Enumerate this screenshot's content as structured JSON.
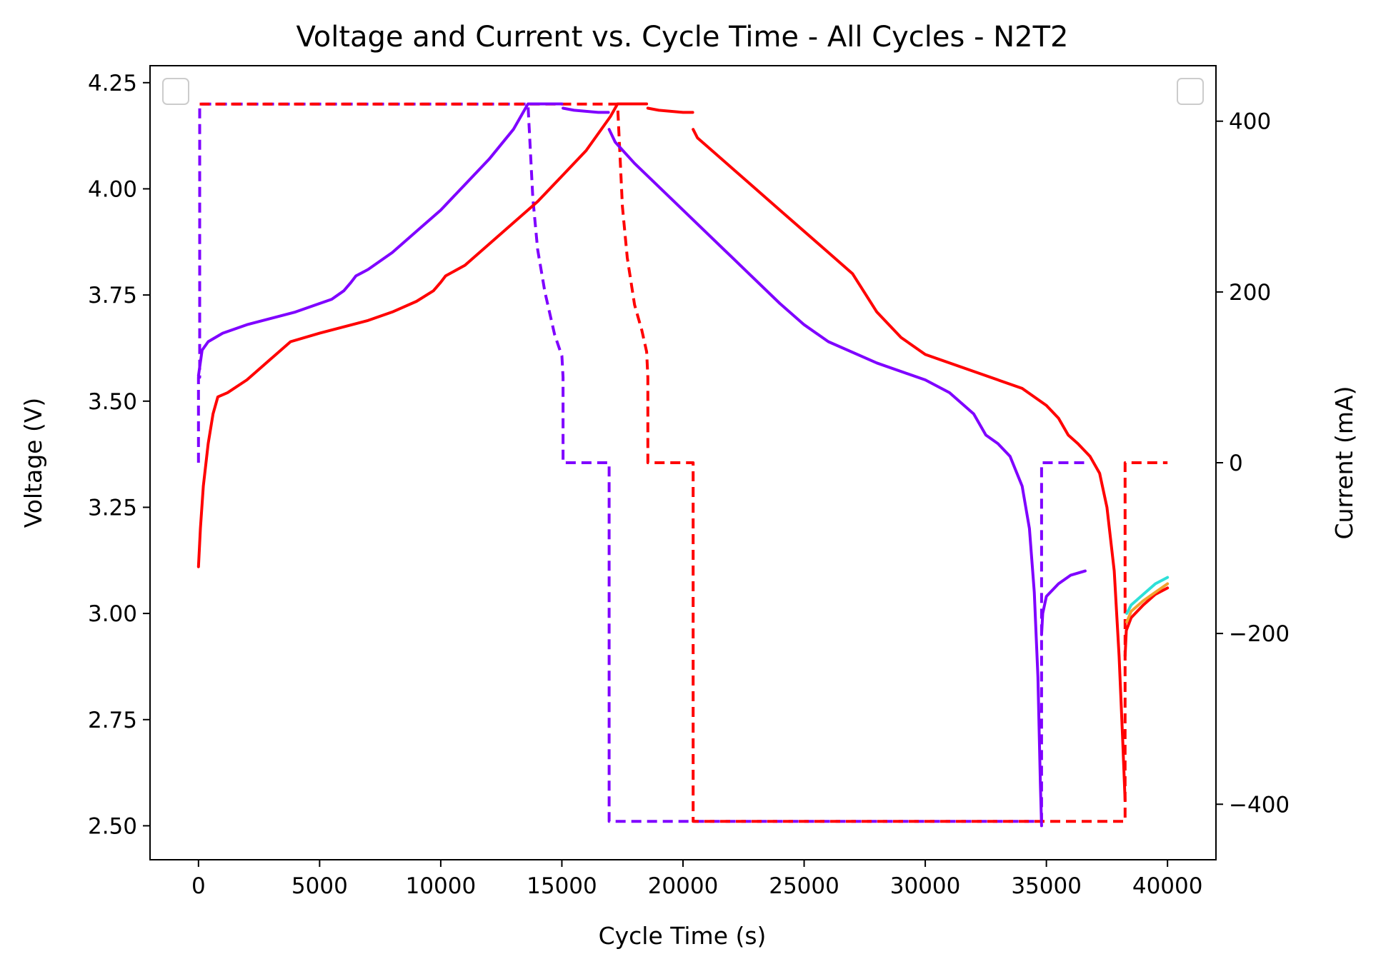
{
  "colors": {
    "purple": "#7f00ff",
    "red": "#ff0000",
    "cyan": "#2ee0d8",
    "orange": "#f2a22e",
    "axis": "#000000",
    "legend_border": "#cccccc"
  },
  "chart_data": {
    "type": "line",
    "title": "Voltage and Current vs. Cycle Time - All Cycles - N2T2",
    "xlabel": "Cycle Time (s)",
    "ylabel_left": "Voltage (V)",
    "ylabel_right": "Current (mA)",
    "xlim": [
      -2000,
      42000
    ],
    "ylim_left": [
      2.42,
      4.29
    ],
    "ylim_right": [
      -465,
      465
    ],
    "xticks": [
      0,
      5000,
      10000,
      15000,
      20000,
      25000,
      30000,
      35000,
      40000
    ],
    "xtick_labels": [
      "0",
      "5000",
      "10000",
      "15000",
      "20000",
      "25000",
      "30000",
      "35000",
      "40000"
    ],
    "yticks_left": [
      2.5,
      2.75,
      3.0,
      3.25,
      3.5,
      3.75,
      4.0,
      4.25
    ],
    "ytick_labels_left": [
      "2.50",
      "2.75",
      "3.00",
      "3.25",
      "3.50",
      "3.75",
      "4.00",
      "4.25"
    ],
    "yticks_right": [
      -400,
      -200,
      0,
      200,
      400
    ],
    "ytick_labels_right": [
      "−400",
      "−200",
      "0",
      "200",
      "400"
    ],
    "grid": false,
    "legend": [
      "top-left (empty)",
      "top-right (empty)"
    ],
    "voltage_series": [
      {
        "color": "#7f00ff",
        "segments": [
          [
            [
              0,
              3.56
            ],
            [
              50,
              3.58
            ],
            [
              150,
              3.62
            ],
            [
              400,
              3.64
            ],
            [
              1000,
              3.66
            ],
            [
              2000,
              3.68
            ],
            [
              3000,
              3.695
            ],
            [
              4000,
              3.71
            ],
            [
              5000,
              3.73
            ],
            [
              5500,
              3.74
            ],
            [
              6000,
              3.76
            ],
            [
              6300,
              3.78
            ],
            [
              6500,
              3.795
            ],
            [
              7000,
              3.81
            ],
            [
              8000,
              3.85
            ],
            [
              9000,
              3.9
            ],
            [
              10000,
              3.95
            ],
            [
              11000,
              4.01
            ],
            [
              12000,
              4.07
            ],
            [
              13000,
              4.14
            ],
            [
              13600,
              4.2
            ],
            [
              15000,
              4.2
            ]
          ],
          [
            [
              15050,
              4.19
            ],
            [
              15500,
              4.185
            ],
            [
              16500,
              4.18
            ],
            [
              16920,
              4.18
            ]
          ],
          [
            [
              16950,
              4.14
            ],
            [
              17200,
              4.11
            ],
            [
              18000,
              4.06
            ],
            [
              20000,
              3.95
            ],
            [
              22000,
              3.84
            ],
            [
              24000,
              3.73
            ],
            [
              25000,
              3.68
            ],
            [
              26000,
              3.64
            ],
            [
              28000,
              3.59
            ],
            [
              30000,
              3.55
            ],
            [
              31000,
              3.52
            ],
            [
              32000,
              3.47
            ],
            [
              32500,
              3.42
            ],
            [
              33000,
              3.4
            ],
            [
              33500,
              3.37
            ],
            [
              34000,
              3.3
            ],
            [
              34300,
              3.2
            ],
            [
              34500,
              3.05
            ],
            [
              34650,
              2.85
            ],
            [
              34750,
              2.6
            ],
            [
              34800,
              2.5
            ]
          ],
          [
            [
              34800,
              2.95
            ],
            [
              34850,
              3.0
            ],
            [
              35000,
              3.04
            ],
            [
              35500,
              3.07
            ],
            [
              36000,
              3.09
            ],
            [
              36600,
              3.1
            ]
          ]
        ]
      },
      {
        "color": "#ff0000",
        "segments": [
          [
            [
              0,
              3.11
            ],
            [
              80,
              3.2
            ],
            [
              200,
              3.3
            ],
            [
              400,
              3.4
            ],
            [
              600,
              3.47
            ],
            [
              800,
              3.51
            ],
            [
              1200,
              3.52
            ],
            [
              2000,
              3.55
            ],
            [
              3000,
              3.6
            ],
            [
              3800,
              3.64
            ],
            [
              5000,
              3.66
            ],
            [
              6000,
              3.675
            ],
            [
              7000,
              3.69
            ],
            [
              8000,
              3.71
            ],
            [
              9000,
              3.735
            ],
            [
              9700,
              3.76
            ],
            [
              10000,
              3.78
            ],
            [
              10200,
              3.795
            ],
            [
              11000,
              3.82
            ],
            [
              12000,
              3.87
            ],
            [
              13000,
              3.92
            ],
            [
              14000,
              3.97
            ],
            [
              15000,
              4.03
            ],
            [
              16000,
              4.09
            ],
            [
              17000,
              4.17
            ],
            [
              17300,
              4.2
            ],
            [
              18500,
              4.2
            ]
          ],
          [
            [
              18550,
              4.19
            ],
            [
              19000,
              4.185
            ],
            [
              20000,
              4.18
            ],
            [
              20400,
              4.18
            ]
          ],
          [
            [
              20420,
              4.14
            ],
            [
              20600,
              4.12
            ],
            [
              21000,
              4.1
            ],
            [
              22000,
              4.05
            ],
            [
              24000,
              3.95
            ],
            [
              26000,
              3.85
            ],
            [
              27000,
              3.8
            ],
            [
              28000,
              3.71
            ],
            [
              29000,
              3.65
            ],
            [
              30000,
              3.61
            ],
            [
              32000,
              3.57
            ],
            [
              34000,
              3.53
            ],
            [
              35000,
              3.49
            ],
            [
              35500,
              3.46
            ],
            [
              35900,
              3.42
            ],
            [
              36300,
              3.4
            ],
            [
              36800,
              3.37
            ],
            [
              37200,
              3.33
            ],
            [
              37500,
              3.25
            ],
            [
              37800,
              3.1
            ],
            [
              38000,
              2.9
            ],
            [
              38150,
              2.7
            ],
            [
              38250,
              2.56
            ]
          ],
          [
            [
              38250,
              2.9
            ],
            [
              38300,
              2.96
            ],
            [
              38500,
              2.99
            ],
            [
              39000,
              3.02
            ],
            [
              39500,
              3.045
            ],
            [
              40000,
              3.06
            ]
          ]
        ]
      },
      {
        "color": "#2ee0d8",
        "segments": [
          [
            [
              38320,
              3.0
            ],
            [
              38500,
              3.02
            ],
            [
              39000,
              3.045
            ],
            [
              39500,
              3.07
            ],
            [
              40000,
              3.085
            ]
          ]
        ]
      },
      {
        "color": "#f2a22e",
        "segments": [
          [
            [
              38320,
              2.98
            ],
            [
              38500,
              3.005
            ],
            [
              39000,
              3.03
            ],
            [
              39500,
              3.05
            ],
            [
              40000,
              3.07
            ]
          ]
        ]
      }
    ],
    "current_series": [
      {
        "color": "#7f00ff",
        "points": [
          [
            0,
            0
          ],
          [
            0,
            100
          ],
          [
            50,
            100
          ],
          [
            50,
            420
          ],
          [
            13600,
            420
          ],
          [
            13800,
            310
          ],
          [
            14000,
            250
          ],
          [
            14300,
            200
          ],
          [
            14700,
            150
          ],
          [
            15000,
            125
          ],
          [
            15050,
            100
          ],
          [
            15050,
            0
          ],
          [
            16950,
            0
          ],
          [
            16950,
            -420
          ],
          [
            34800,
            -420
          ],
          [
            34800,
            0
          ],
          [
            36600,
            0
          ]
        ]
      },
      {
        "color": "#ff0000",
        "points": [
          [
            50,
            420
          ],
          [
            17300,
            420
          ],
          [
            17500,
            300
          ],
          [
            17700,
            240
          ],
          [
            18000,
            185
          ],
          [
            18300,
            155
          ],
          [
            18500,
            130
          ],
          [
            18550,
            100
          ],
          [
            18550,
            0
          ],
          [
            20420,
            0
          ],
          [
            20420,
            -420
          ],
          [
            38250,
            -420
          ],
          [
            38250,
            0
          ],
          [
            40000,
            0
          ]
        ]
      }
    ]
  }
}
